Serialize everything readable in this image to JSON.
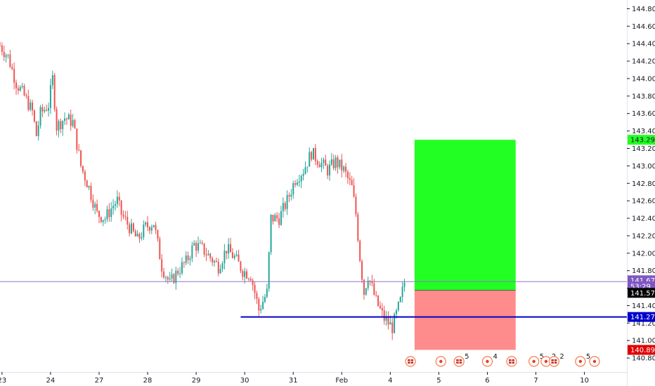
{
  "chart_data": {
    "type": "candlestick",
    "instrument_interval": "hourly",
    "colors": {
      "up": "#26a69a",
      "down": "#ef5350",
      "long_profit": "#22ff22",
      "long_loss": "#ff8c8c",
      "hline": "#0000cc",
      "axis": "#131722"
    },
    "y_axis": {
      "range": [
        140.64,
        144.9
      ],
      "ticks": [
        "140.800",
        "141.000",
        "141.200",
        "141.400",
        "141.600",
        "141.800",
        "142.000",
        "142.200",
        "142.400",
        "142.600",
        "142.800",
        "143.000",
        "143.200",
        "143.400",
        "143.600",
        "143.800",
        "144.000",
        "144.200",
        "144.400",
        "144.600",
        "144.800"
      ]
    },
    "x_axis": {
      "labels": [
        {
          "label": "23",
          "x": 0.5
        },
        {
          "label": "24",
          "x": 12.5
        },
        {
          "label": "27",
          "x": 24.5
        },
        {
          "label": "28",
          "x": 36.5
        },
        {
          "label": "29",
          "x": 48.5
        },
        {
          "label": "30",
          "x": 60.5
        },
        {
          "label": "31",
          "x": 72.5
        },
        {
          "label": "Feb",
          "x": 84.5
        },
        {
          "label": "4",
          "x": 96.5
        },
        {
          "label": "5",
          "x": 108.5
        },
        {
          "label": "6",
          "x": 120.5
        },
        {
          "label": "7",
          "x": 132.5
        },
        {
          "label": "10",
          "x": 144.5
        }
      ],
      "range": [
        0,
        155
      ]
    },
    "price_path": [
      [
        0,
        144.38
      ],
      [
        2,
        144.25
      ],
      [
        4,
        143.95
      ],
      [
        6,
        143.8
      ],
      [
        8,
        143.62
      ],
      [
        9,
        143.35
      ],
      [
        10,
        143.6
      ],
      [
        12,
        143.7
      ],
      [
        13,
        144.0
      ],
      [
        14,
        143.45
      ],
      [
        16,
        143.55
      ],
      [
        18,
        143.5
      ],
      [
        20,
        143.0
      ],
      [
        22,
        142.75
      ],
      [
        24,
        142.45
      ],
      [
        26,
        142.4
      ],
      [
        28,
        142.55
      ],
      [
        29,
        142.6
      ],
      [
        30,
        142.45
      ],
      [
        32,
        142.3
      ],
      [
        34,
        142.15
      ],
      [
        36,
        142.3
      ],
      [
        38,
        142.35
      ],
      [
        40,
        141.85
      ],
      [
        42,
        141.65
      ],
      [
        44,
        141.8
      ],
      [
        46,
        141.9
      ],
      [
        48,
        142.1
      ],
      [
        50,
        142.05
      ],
      [
        52,
        141.95
      ],
      [
        54,
        141.85
      ],
      [
        56,
        142.05
      ],
      [
        58,
        141.95
      ],
      [
        60,
        141.8
      ],
      [
        62,
        141.75
      ],
      [
        64,
        141.35
      ],
      [
        66,
        141.55
      ],
      [
        67,
        142.4
      ],
      [
        69,
        142.4
      ],
      [
        71,
        142.6
      ],
      [
        73,
        142.85
      ],
      [
        75,
        142.95
      ],
      [
        77,
        143.15
      ],
      [
        79,
        143.05
      ],
      [
        81,
        142.95
      ],
      [
        83,
        143.05
      ],
      [
        85,
        142.95
      ],
      [
        87,
        142.75
      ],
      [
        88,
        142.45
      ],
      [
        89,
        141.95
      ],
      [
        90,
        141.55
      ],
      [
        91,
        141.75
      ],
      [
        93,
        141.45
      ],
      [
        95,
        141.25
      ],
      [
        97,
        141.15
      ],
      [
        98,
        141.3
      ],
      [
        99,
        141.45
      ],
      [
        100,
        141.67
      ]
    ],
    "long_position": {
      "x_start": 102.5,
      "x_end": 127.5,
      "entry": 141.575,
      "target": 143.299,
      "stop": 140.893
    },
    "horizontal_line": {
      "price": 141.27,
      "x_start": 59.5
    },
    "current_price": 141.675,
    "price_tags": [
      {
        "text": "143.299",
        "price": 143.299,
        "color": "#22ff22",
        "text_color": "#131722"
      },
      {
        "text": "141.675",
        "price": 141.69,
        "color": "#7e57c2",
        "text_color": "#ffffff"
      },
      {
        "text": "53:29",
        "price": 141.62,
        "color": "#7e57c2",
        "text_color": "#ffffff"
      },
      {
        "text": "141.575",
        "price": 141.546,
        "color": "#000000",
        "text_color": "#ffffff"
      },
      {
        "text": "141.270",
        "price": 141.27,
        "color": "#0000cc",
        "text_color": "#ffffff"
      },
      {
        "text": "140.893",
        "price": 140.893,
        "color": "#e00000",
        "text_color": "#ffffff"
      }
    ],
    "event_markers": [
      {
        "x": 101.5,
        "icon": "flag-uk-icon",
        "count": ""
      },
      {
        "x": 109,
        "icon": "dot-icon",
        "count": ""
      },
      {
        "x": 113.5,
        "icon": "flag-us-icon",
        "count": "5"
      },
      {
        "x": 120.5,
        "icon": "dot-icon",
        "count": "4"
      },
      {
        "x": 126.5,
        "icon": "flag-us-icon",
        "count": ""
      },
      {
        "x": 132,
        "icon": "dot-icon",
        "count": "5"
      },
      {
        "x": 135,
        "icon": "dot-icon",
        "count": "2"
      },
      {
        "x": 137,
        "icon": "flag-us-icon",
        "count": "2"
      },
      {
        "x": 143.5,
        "icon": "dot-icon",
        "count": "5"
      },
      {
        "x": 147,
        "icon": "dot-icon",
        "count": ""
      }
    ]
  }
}
